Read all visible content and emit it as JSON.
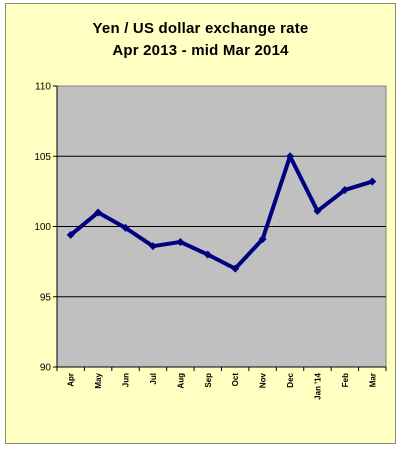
{
  "chart_data": {
    "type": "line",
    "title": "Yen / US dollar exchange rate",
    "subtitle": "Apr 2013 - mid Mar 2014",
    "xlabel": "",
    "ylabel": "",
    "categories": [
      "Apr",
      "May",
      "Jun",
      "Jul",
      "Aug",
      "Sep",
      "Oct",
      "Nov",
      "Dec",
      "Jan '14",
      "Feb",
      "Mar"
    ],
    "series": [
      {
        "values": [
          99.4,
          101.0,
          99.9,
          98.6,
          98.9,
          98.0,
          97.0,
          99.1,
          105.0,
          101.1,
          102.6,
          103.2
        ]
      }
    ],
    "ylim": [
      90,
      110
    ],
    "yticks": [
      "90",
      "95",
      "100",
      "105",
      "110"
    ],
    "ytick_values": [
      90,
      95,
      100,
      105,
      110
    ],
    "grid": true,
    "legend": "none",
    "colors": {
      "background": "#ffffc2",
      "plot_area": "#c0c0c0",
      "line": "#000080",
      "grid": "#000000"
    }
  }
}
